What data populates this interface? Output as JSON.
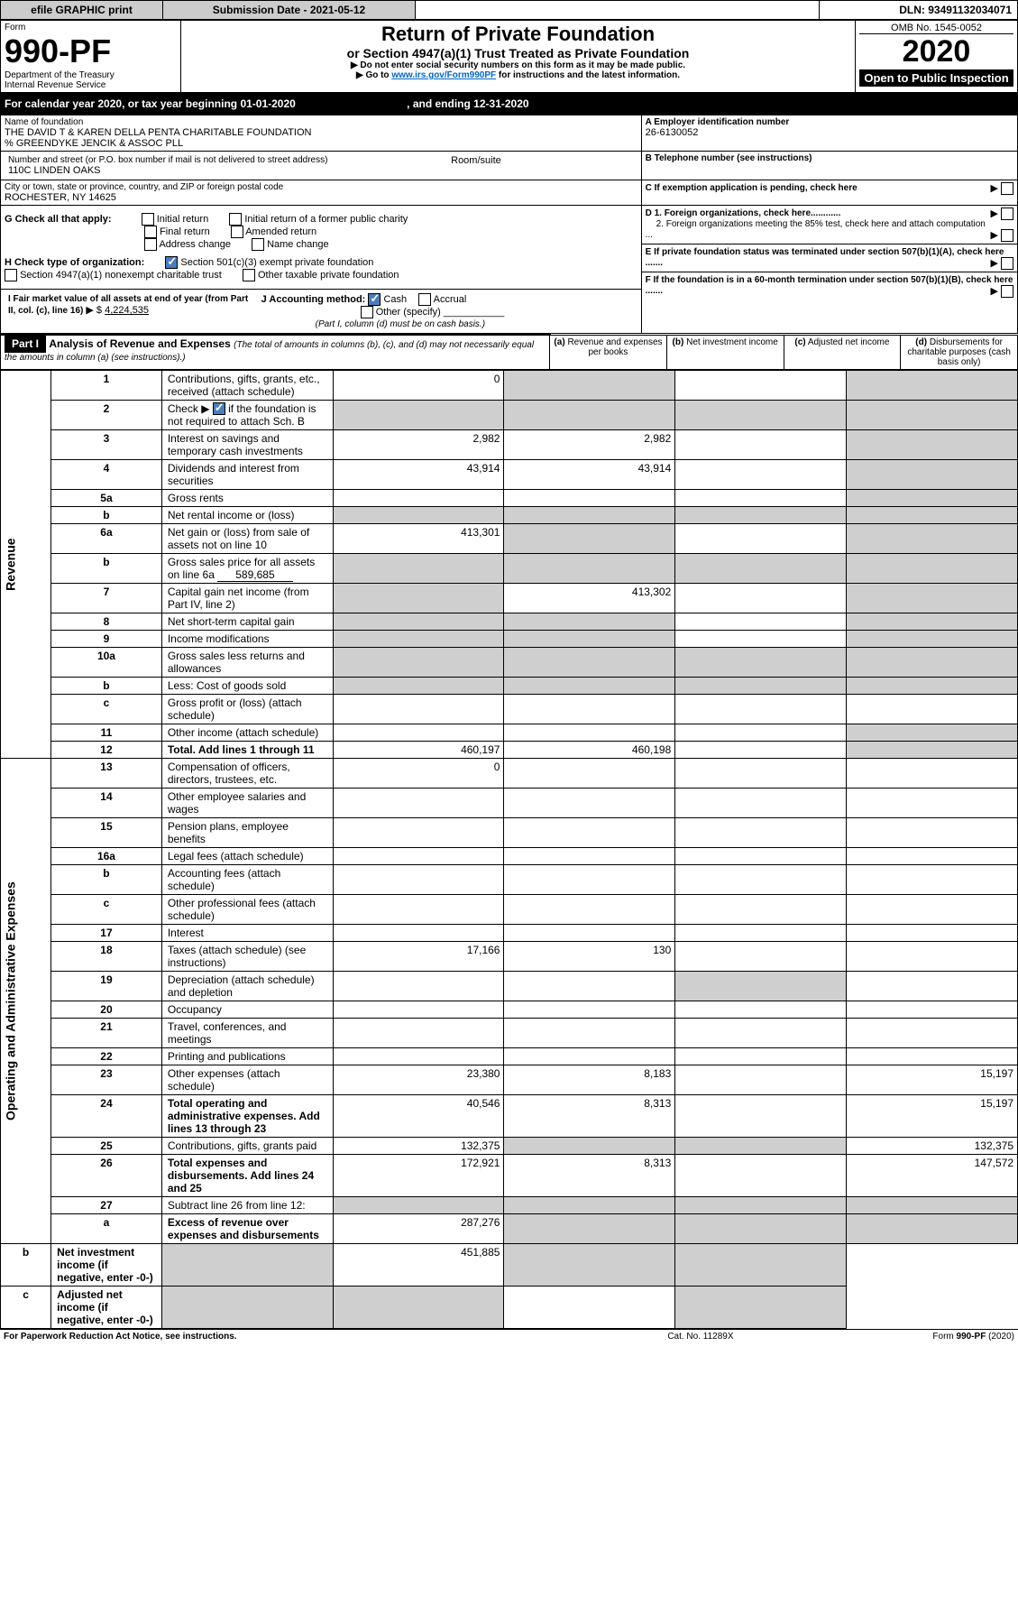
{
  "topbar": {
    "efile": "efile GRAPHIC print",
    "submission_label": "Submission Date - 2021-05-12",
    "dln": "DLN: 93491132034071"
  },
  "form": {
    "form_word": "Form",
    "number": "990-PF",
    "dept": "Department of the Treasury",
    "irs": "Internal Revenue Service",
    "title": "Return of Private Foundation",
    "subtitle": "or Section 4947(a)(1) Trust Treated as Private Foundation",
    "note1": "Do not enter social security numbers on this form as it may be made public.",
    "note2_prefix": "Go to ",
    "note2_link": "www.irs.gov/Form990PF",
    "note2_suffix": " for instructions and the latest information.",
    "omb": "OMB No. 1545-0052",
    "year": "2020",
    "open": "Open to Public Inspection"
  },
  "calendar": {
    "line": "For calendar year 2020, or tax year beginning 01-01-2020",
    "ending": ", and ending 12-31-2020"
  },
  "header": {
    "name_lbl": "Name of foundation",
    "name": "THE DAVID T & KAREN DELLA PENTA CHARITABLE FOUNDATION",
    "care_of": "% GREENDYKE JENCIK & ASSOC PLL",
    "addr_lbl": "Number and street (or P.O. box number if mail is not delivered to street address)",
    "room_lbl": "Room/suite",
    "addr": "110C LINDEN OAKS",
    "city_lbl": "City or town, state or province, country, and ZIP or foreign postal code",
    "city": "ROCHESTER, NY  14625",
    "a_lbl": "A Employer identification number",
    "a_val": "26-6130052",
    "b_lbl": "B Telephone number (see instructions)",
    "c_lbl": "C If exemption application is pending, check here",
    "d1": "D 1. Foreign organizations, check here............",
    "d2": "2. Foreign organizations meeting the 85% test, check here and attach computation ...",
    "e_lbl": "E  If private foundation status was terminated under section 507(b)(1)(A), check here .......",
    "f_lbl": "F  If the foundation is in a 60-month termination under section 507(b)(1)(B), check here .......",
    "g_lbl": "G Check all that apply:",
    "g_opts": [
      "Initial return",
      "Initial return of a former public charity",
      "Final return",
      "Amended return",
      "Address change",
      "Name change"
    ],
    "h_lbl": "H Check type of organization:",
    "h_opt1": "Section 501(c)(3) exempt private foundation",
    "h_opt2": "Section 4947(a)(1) nonexempt charitable trust",
    "h_opt3": "Other taxable private foundation",
    "i_lbl": "I Fair market value of all assets at end of year (from Part II, col. (c), line 16)",
    "i_val": "4,224,535",
    "j_lbl": "J Accounting method:",
    "j_cash": "Cash",
    "j_accrual": "Accrual",
    "j_other": "Other (specify)",
    "j_note": "(Part I, column (d) must be on cash basis.)"
  },
  "part1": {
    "label": "Part I",
    "title": "Analysis of Revenue and Expenses",
    "title_note": "(The total of amounts in columns (b), (c), and (d) may not necessarily equal the amounts in column (a) (see instructions).)",
    "col_a": "Revenue and expenses per books",
    "col_b": "Net investment income",
    "col_c": "Adjusted net income",
    "col_d": "Disbursements for charitable purposes (cash basis only)",
    "revenue_label": "Revenue",
    "expenses_label": "Operating and Administrative Expenses"
  },
  "rows": [
    {
      "n": "1",
      "lbl": "Contributions, gifts, grants, etc., received (attach schedule)",
      "a": "0"
    },
    {
      "n": "2",
      "lbl": "if the foundation is not required to attach Sch. B",
      "prefix": "Check ▶",
      "checked": true
    },
    {
      "n": "3",
      "lbl": "Interest on savings and temporary cash investments",
      "a": "2,982",
      "b": "2,982"
    },
    {
      "n": "4",
      "lbl": "Dividends and interest from securities",
      "a": "43,914",
      "b": "43,914"
    },
    {
      "n": "5a",
      "lbl": "Gross rents"
    },
    {
      "n": "b",
      "lbl": "Net rental income or (loss)"
    },
    {
      "n": "6a",
      "lbl": "Net gain or (loss) from sale of assets not on line 10",
      "a": "413,301"
    },
    {
      "n": "b",
      "lbl": "Gross sales price for all assets on line 6a",
      "inline_val": "589,685"
    },
    {
      "n": "7",
      "lbl": "Capital gain net income (from Part IV, line 2)",
      "b": "413,302"
    },
    {
      "n": "8",
      "lbl": "Net short-term capital gain"
    },
    {
      "n": "9",
      "lbl": "Income modifications"
    },
    {
      "n": "10a",
      "lbl": "Gross sales less returns and allowances"
    },
    {
      "n": "b",
      "lbl": "Less: Cost of goods sold"
    },
    {
      "n": "c",
      "lbl": "Gross profit or (loss) (attach schedule)"
    },
    {
      "n": "11",
      "lbl": "Other income (attach schedule)"
    },
    {
      "n": "12",
      "lbl": "Total. Add lines 1 through 11",
      "a": "460,197",
      "b": "460,198",
      "bold": true
    },
    {
      "n": "13",
      "lbl": "Compensation of officers, directors, trustees, etc.",
      "a": "0"
    },
    {
      "n": "14",
      "lbl": "Other employee salaries and wages"
    },
    {
      "n": "15",
      "lbl": "Pension plans, employee benefits"
    },
    {
      "n": "16a",
      "lbl": "Legal fees (attach schedule)"
    },
    {
      "n": "b",
      "lbl": "Accounting fees (attach schedule)"
    },
    {
      "n": "c",
      "lbl": "Other professional fees (attach schedule)"
    },
    {
      "n": "17",
      "lbl": "Interest"
    },
    {
      "n": "18",
      "lbl": "Taxes (attach schedule) (see instructions)",
      "a": "17,166",
      "b": "130"
    },
    {
      "n": "19",
      "lbl": "Depreciation (attach schedule) and depletion"
    },
    {
      "n": "20",
      "lbl": "Occupancy"
    },
    {
      "n": "21",
      "lbl": "Travel, conferences, and meetings"
    },
    {
      "n": "22",
      "lbl": "Printing and publications"
    },
    {
      "n": "23",
      "lbl": "Other expenses (attach schedule)",
      "a": "23,380",
      "b": "8,183",
      "d": "15,197"
    },
    {
      "n": "24",
      "lbl": "Total operating and administrative expenses. Add lines 13 through 23",
      "a": "40,546",
      "b": "8,313",
      "d": "15,197",
      "bold": true
    },
    {
      "n": "25",
      "lbl": "Contributions, gifts, grants paid",
      "a": "132,375",
      "d": "132,375"
    },
    {
      "n": "26",
      "lbl": "Total expenses and disbursements. Add lines 24 and 25",
      "a": "172,921",
      "b": "8,313",
      "d": "147,572",
      "bold": true
    },
    {
      "n": "27",
      "lbl": "Subtract line 26 from line 12:"
    },
    {
      "n": "a",
      "lbl": "Excess of revenue over expenses and disbursements",
      "a": "287,276",
      "bold": true
    },
    {
      "n": "b",
      "lbl": "Net investment income (if negative, enter -0-)",
      "b": "451,885",
      "bold": true
    },
    {
      "n": "c",
      "lbl": "Adjusted net income (if negative, enter -0-)",
      "bold": true
    }
  ],
  "footer": {
    "paperwork": "For Paperwork Reduction Act Notice, see instructions.",
    "cat": "Cat. No. 11289X",
    "form": "Form 990-PF (2020)"
  },
  "style": {
    "bg_shade": "#cfcfcf",
    "link_color": "#0066cc",
    "check_color": "#4a7cc0"
  }
}
